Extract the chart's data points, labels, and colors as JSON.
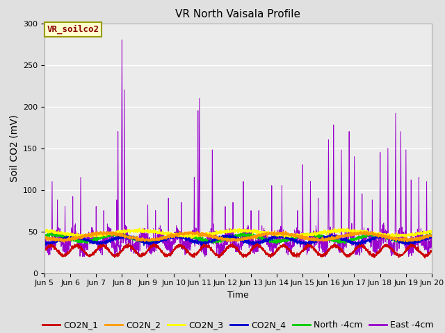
{
  "title": "VR North Vaisala Profile",
  "ylabel": "Soil CO2 (mV)",
  "xlabel": "Time",
  "annotation": "VR_soilco2",
  "xlim_days": [
    5,
    20
  ],
  "ylim": [
    0,
    300
  ],
  "yticks": [
    0,
    50,
    100,
    150,
    200,
    250,
    300
  ],
  "xtick_labels": [
    "Jun 5",
    "Jun 6",
    "Jun 7",
    "Jun 8",
    "Jun 9",
    "Jun 10",
    "Jun 11",
    "Jun 12",
    "Jun 13",
    "Jun 14",
    "Jun 15",
    "Jun 16",
    "Jun 17",
    "Jun 18",
    "Jun 19",
    "Jun 20"
  ],
  "series": {
    "CO2N_1": {
      "color": "#cc0000",
      "label": "CO2N_1"
    },
    "CO2N_2": {
      "color": "#ff9900",
      "label": "CO2N_2"
    },
    "CO2N_3": {
      "color": "#ffff00",
      "label": "CO2N_3"
    },
    "CO2N_4": {
      "color": "#0000cc",
      "label": "CO2N_4"
    },
    "North_4cm": {
      "color": "#00cc00",
      "label": "North -4cm"
    },
    "East_4cm": {
      "color": "#9900cc",
      "label": "East -4cm"
    }
  },
  "background_color": "#e0e0e0",
  "plot_bg_color": "#ebebeb",
  "grid_color": "#ffffff",
  "annotation_bg": "#ffffcc",
  "annotation_border": "#999900"
}
